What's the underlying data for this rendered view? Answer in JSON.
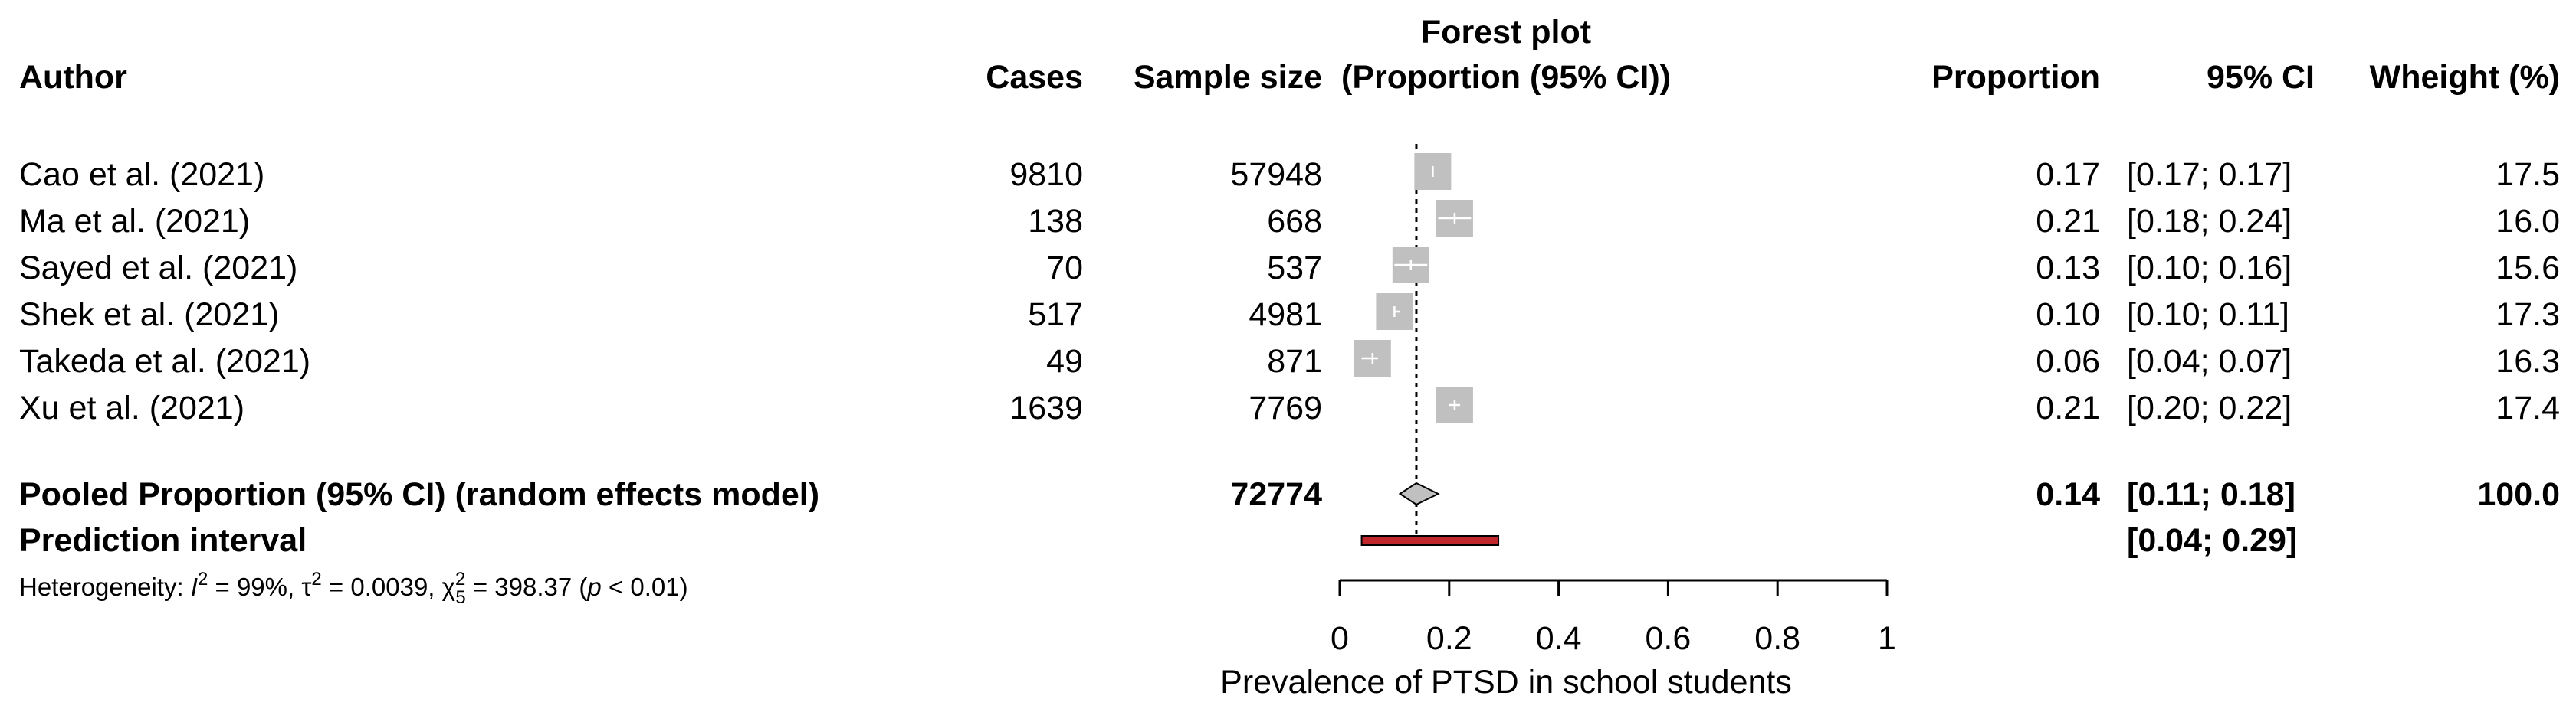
{
  "chart_data": {
    "type": "forest",
    "title": "Forest plot",
    "subtitle": "(Proportion (95% CI))",
    "xlabel": "Prevalence of PTSD in school students",
    "xlim": [
      0,
      1
    ],
    "xticks": [
      "0",
      "0.2",
      "0.4",
      "0.6",
      "0.8",
      "1"
    ],
    "columns": {
      "author": "Author",
      "cases": "Cases",
      "sample": "Sample size",
      "proportion": "Proportion",
      "ci": "95% CI",
      "weight": "Wheight (%)"
    },
    "studies": [
      {
        "author": "Cao et al. (2021)",
        "cases": "9810",
        "sample": "57948",
        "prop_text": "0.17",
        "ci_text": "[0.17; 0.17]",
        "weight_text": "17.5",
        "prop": 0.17,
        "lo": 0.17,
        "hi": 0.17,
        "weight": 17.5
      },
      {
        "author": "Ma et al. (2021)",
        "cases": "138",
        "sample": "668",
        "prop_text": "0.21",
        "ci_text": "[0.18; 0.24]",
        "weight_text": "16.0",
        "prop": 0.21,
        "lo": 0.18,
        "hi": 0.24,
        "weight": 16.0
      },
      {
        "author": "Sayed et al. (2021)",
        "cases": "70",
        "sample": "537",
        "prop_text": "0.13",
        "ci_text": "[0.10; 0.16]",
        "weight_text": "15.6",
        "prop": 0.13,
        "lo": 0.1,
        "hi": 0.16,
        "weight": 15.6
      },
      {
        "author": "Shek et al. (2021)",
        "cases": "517",
        "sample": "4981",
        "prop_text": "0.10",
        "ci_text": "[0.10; 0.11]",
        "weight_text": "17.3",
        "prop": 0.1,
        "lo": 0.1,
        "hi": 0.11,
        "weight": 17.3
      },
      {
        "author": "Takeda et al. (2021)",
        "cases": "49",
        "sample": "871",
        "prop_text": "0.06",
        "ci_text": "[0.04; 0.07]",
        "weight_text": "16.3",
        "prop": 0.06,
        "lo": 0.04,
        "hi": 0.07,
        "weight": 16.3
      },
      {
        "author": "Xu et al. (2021)",
        "cases": "1639",
        "sample": "7769",
        "prop_text": "0.21",
        "ci_text": "[0.20; 0.22]",
        "weight_text": "17.4",
        "prop": 0.21,
        "lo": 0.2,
        "hi": 0.22,
        "weight": 17.4
      }
    ],
    "pooled": {
      "label": "Pooled Proportion (95% CI) (random effects model)",
      "sample": "72774",
      "prop_text": "0.14",
      "ci_text": "[0.11; 0.18]",
      "weight_text": "100.0",
      "prop": 0.14,
      "lo": 0.11,
      "hi": 0.18
    },
    "prediction": {
      "label": "Prediction interval",
      "ci_text": "[0.04; 0.29]",
      "lo": 0.04,
      "hi": 0.29
    },
    "heterogeneity": {
      "prefix": "Heterogeneity: ",
      "i2": "I",
      "i2_val": " = 99%, ",
      "tau": "τ",
      "tau_val": " = 0.0039, ",
      "chi": "χ",
      "chi_sub": "5",
      "chi_val": " = 398.37 (",
      "p": "p",
      "p_val": " < 0.01)"
    },
    "reference_line": 0.14,
    "colors": {
      "box": "#c0c0c0",
      "diamond": "#c0c0c0",
      "prediction": "#c0272d",
      "ci_inside": "#ffffff",
      "ci_outside": "#000000"
    }
  }
}
